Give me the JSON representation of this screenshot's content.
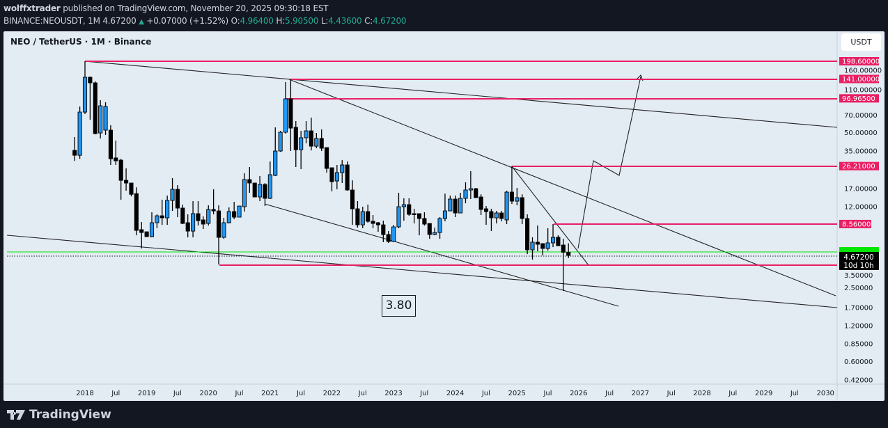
{
  "header": {
    "author": "wolffxtrader",
    "published": " published on TradingView.com, November 20, 2025 09:30:18 EST",
    "symbol": "BINANCE:NEOUSDT, 1M",
    "last": "4.67200",
    "change": "+0.07000 (+1.52%)",
    "o_label": "O:",
    "o": "4.96400",
    "h_label": "H:",
    "h": "5.90500",
    "l_label": "L:",
    "l": "4.43600",
    "c_label": "C:",
    "c": "4.67200"
  },
  "chart": {
    "title": "NEO / TetherUS · 1M · Binance",
    "currency_button": "USDT",
    "annotation": "3.80",
    "current_price_label": "4.67200",
    "countdown": "10d 10h",
    "colors": {
      "up": "#2196f3",
      "down": "#000000",
      "level": "#e91e63",
      "green_line": "#00e600",
      "background": "#e3ebf3"
    },
    "price_ticks": [
      "160.00000",
      "110.00000",
      "70.00000",
      "50.00000",
      "35.00000",
      "17.00000",
      "12.00000",
      "3.50000",
      "2.50000",
      "1.70000",
      "1.20000",
      "0.85000",
      "0.60000",
      "0.42000"
    ],
    "levels": [
      "198.60000",
      "141.00000",
      "96.96500",
      "26.21000",
      "8.56000"
    ],
    "time_ticks": [
      "2018",
      "Jul",
      "2019",
      "Jul",
      "2020",
      "Jul",
      "2021",
      "Jul",
      "2022",
      "Jul",
      "2023",
      "Jul",
      "2024",
      "Jul",
      "2025",
      "Jul",
      "2026",
      "Jul",
      "2027",
      "Jul",
      "2028",
      "Jul",
      "2029",
      "Jul",
      "2030"
    ],
    "scale": "log",
    "first_month": "2017-11",
    "candles_ohlc": [
      [
        35.5,
        45.9,
        29.0,
        32.3
      ],
      [
        32.3,
        82.9,
        30.2,
        74.4
      ],
      [
        74.4,
        198.6,
        71.5,
        145.8
      ],
      [
        145.8,
        147.8,
        64.2,
        130.9
      ],
      [
        130.9,
        134.5,
        48.4,
        49.1
      ],
      [
        49.7,
        93.5,
        44.7,
        84.0
      ],
      [
        52.5,
        89.8,
        47.8,
        82.9
      ],
      [
        52.5,
        57.7,
        26.8,
        30.2
      ],
      [
        30.7,
        42.9,
        26.8,
        29.0
      ],
      [
        29.4,
        30.2,
        13.7,
        19.9
      ],
      [
        19.9,
        25.1,
        16.3,
        18.9
      ],
      [
        18.9,
        18.9,
        14.6,
        15.2
      ],
      [
        15.4,
        17.4,
        6.89,
        7.57
      ],
      [
        7.68,
        8.9,
        5.34,
        7.27
      ],
      [
        7.37,
        7.37,
        6.71,
        6.71
      ],
      [
        6.71,
        10.74,
        6.62,
        8.78
      ],
      [
        8.78,
        10.32,
        7.89,
        10.04
      ],
      [
        10.04,
        13.68,
        8.43,
        9.65
      ],
      [
        9.65,
        14.83,
        8.43,
        13.5
      ],
      [
        13.5,
        20.76,
        11.03,
        16.74
      ],
      [
        16.74,
        18.15,
        9.78,
        11.65
      ],
      [
        11.65,
        12.45,
        8.55,
        8.66
      ],
      [
        8.78,
        10.32,
        6.62,
        7.47
      ],
      [
        7.47,
        13.32,
        6.62,
        10.46
      ],
      [
        10.46,
        13.32,
        8.32,
        9.14
      ],
      [
        9.27,
        9.91,
        7.78,
        8.55
      ],
      [
        8.66,
        12.29,
        8.32,
        11.34
      ],
      [
        11.34,
        16.74,
        10.32,
        11.03
      ],
      [
        11.03,
        12.29,
        3.92,
        6.62
      ],
      [
        6.62,
        9.65,
        6.44,
        8.78
      ],
      [
        8.78,
        11.8,
        8.66,
        10.89
      ],
      [
        10.89,
        13.14,
        9.39,
        9.78
      ],
      [
        9.78,
        12.12,
        9.78,
        12.12
      ],
      [
        11.96,
        22.81,
        10.89,
        20.21
      ],
      [
        20.21,
        25.74,
        15.65,
        18.9
      ],
      [
        18.9,
        18.9,
        14.44,
        14.44
      ],
      [
        14.44,
        21.61,
        13.32,
        18.39
      ],
      [
        18.39,
        18.9,
        12.12,
        14.06
      ],
      [
        14.06,
        28.66,
        13.87,
        22.2
      ],
      [
        21.91,
        55.37,
        21.61,
        35.07
      ],
      [
        35.07,
        51.78,
        34.59,
        50.41
      ],
      [
        50.41,
        132.7,
        49.1,
        96.1
      ],
      [
        96.1,
        141.0,
        35.07,
        54.6
      ],
      [
        55.4,
        62.5,
        25.74,
        36.0
      ],
      [
        36.0,
        51.78,
        24.72,
        45.3
      ],
      [
        45.3,
        62.5,
        40.65,
        51.78
      ],
      [
        51.78,
        66.8,
        35.5,
        38.5
      ],
      [
        38.5,
        49.7,
        37.0,
        44.7
      ],
      [
        44.7,
        53.2,
        35.07,
        37.0
      ],
      [
        37.5,
        37.5,
        23.11,
        25.06
      ],
      [
        25.4,
        25.4,
        16.08,
        19.41
      ],
      [
        19.67,
        26.8,
        16.74,
        23.11
      ],
      [
        23.11,
        29.4,
        18.9,
        26.8
      ],
      [
        26.8,
        28.66,
        16.3,
        16.52
      ],
      [
        16.52,
        19.9,
        8.43,
        11.49
      ],
      [
        11.49,
        13.32,
        7.99,
        8.43
      ],
      [
        8.43,
        11.96,
        7.89,
        10.89
      ],
      [
        10.89,
        12.45,
        8.78,
        9.02
      ],
      [
        9.02,
        10.18,
        7.89,
        8.66
      ],
      [
        8.78,
        8.9,
        7.37,
        8.43
      ],
      [
        8.43,
        9.14,
        6.03,
        6.99
      ],
      [
        6.99,
        7.47,
        5.95,
        6.11
      ],
      [
        6.11,
        8.43,
        6.03,
        8.1
      ],
      [
        8.1,
        15.65,
        7.89,
        11.96
      ],
      [
        11.96,
        14.06,
        9.14,
        12.45
      ],
      [
        12.45,
        14.06,
        10.04,
        10.32
      ],
      [
        10.46,
        11.49,
        8.66,
        10.32
      ],
      [
        10.46,
        10.46,
        6.89,
        9.52
      ],
      [
        9.52,
        10.74,
        8.32,
        8.55
      ],
      [
        8.66,
        8.66,
        6.44,
        6.99
      ],
      [
        6.99,
        7.99,
        6.89,
        7.27
      ],
      [
        7.27,
        9.78,
        6.44,
        9.52
      ],
      [
        9.52,
        15.4,
        9.02,
        11.03
      ],
      [
        11.03,
        14.83,
        11.03,
        13.87
      ],
      [
        13.87,
        14.83,
        9.78,
        10.6
      ],
      [
        10.6,
        15.65,
        10.6,
        14.06
      ],
      [
        14.06,
        19.15,
        12.79,
        16.52
      ],
      [
        16.52,
        23.75,
        13.87,
        16.96
      ],
      [
        16.96,
        17.19,
        14.25,
        14.25
      ],
      [
        14.44,
        15.2,
        10.18,
        11.34
      ],
      [
        11.49,
        12.12,
        8.43,
        10.89
      ],
      [
        10.89,
        11.49,
        7.47,
        9.65
      ],
      [
        9.65,
        11.03,
        8.66,
        10.6
      ],
      [
        10.6,
        11.03,
        9.02,
        9.52
      ],
      [
        9.27,
        16.3,
        8.55,
        15.86
      ],
      [
        15.86,
        26.21,
        12.62,
        13.32
      ],
      [
        13.32,
        17.19,
        12.29,
        14.25
      ],
      [
        14.25,
        15.2,
        8.55,
        9.52
      ],
      [
        9.52,
        10.32,
        4.79,
        5.2
      ],
      [
        5.2,
        6.62,
        4.31,
        6.03
      ],
      [
        6.03,
        8.32,
        5.06,
        5.79
      ],
      [
        5.87,
        5.87,
        4.67,
        5.34
      ],
      [
        5.34,
        7.89,
        5.13,
        5.95
      ],
      [
        5.95,
        8.56,
        5.48,
        6.62
      ],
      [
        6.62,
        6.89,
        5.63,
        5.63
      ],
      [
        5.71,
        6.44,
        2.35,
        4.964
      ],
      [
        4.964,
        5.905,
        4.436,
        4.672
      ]
    ]
  },
  "footer": {
    "logo": "TradingView"
  }
}
